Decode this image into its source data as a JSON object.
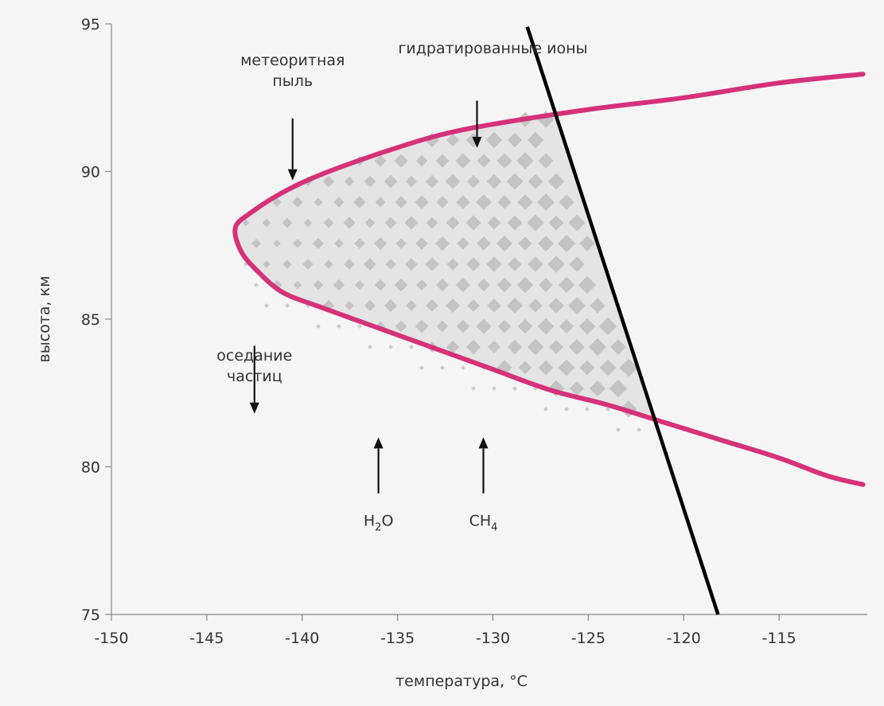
{
  "chart_data": {
    "type": "line",
    "title": "",
    "xlabel": "температура, °C",
    "ylabel": "высота, км",
    "xlim": [
      -150,
      -110.5
    ],
    "ylim": [
      75,
      95
    ],
    "xticks": [
      -150,
      -145,
      -140,
      -135,
      -130,
      -125,
      -120,
      -115
    ],
    "yticks": [
      75,
      80,
      85,
      90,
      95
    ],
    "grid": false,
    "legend": "none",
    "series": [
      {
        "color": "#d6317a",
        "kind": "boundary",
        "points": [
          [
            -110.6,
            93.3
          ],
          [
            -115,
            93.0
          ],
          [
            -120,
            92.5
          ],
          [
            -125,
            92.1
          ],
          [
            -130,
            91.6
          ],
          [
            -133,
            91.2
          ],
          [
            -136,
            90.6
          ],
          [
            -139,
            89.9
          ],
          [
            -141,
            89.3
          ],
          [
            -142.7,
            88.6
          ],
          [
            -143.5,
            88.1
          ],
          [
            -143.2,
            87.3
          ],
          [
            -142.3,
            86.6
          ],
          [
            -141,
            85.9
          ],
          [
            -139,
            85.4
          ],
          [
            -136,
            84.7
          ],
          [
            -133,
            84.0
          ],
          [
            -130,
            83.3
          ],
          [
            -127,
            82.6
          ],
          [
            -124,
            82.1
          ],
          [
            -121,
            81.5
          ],
          [
            -118,
            80.9
          ],
          [
            -115,
            80.3
          ],
          [
            -112.5,
            79.7
          ],
          [
            -110.6,
            79.4
          ]
        ]
      },
      {
        "color": "#000000",
        "kind": "temperature-line",
        "points": [
          [
            -128.2,
            94.9
          ],
          [
            -118.2,
            75.0
          ]
        ]
      }
    ],
    "annotations": [
      {
        "lines": [
          "метеоритная",
          "пыль"
        ],
        "x": -140.5,
        "y": 93.6,
        "arrow": "down",
        "arrow_from": 91.8,
        "arrow_to": 89.7
      },
      {
        "lines": [
          "гидратированные ионы"
        ],
        "x": -130.0,
        "y": 94.0,
        "arrow": "down",
        "arrow_from": 92.4,
        "arrow_to": 90.8
      },
      {
        "lines": [
          "оседание",
          "частиц"
        ],
        "x": -142.5,
        "y": 83.6,
        "arrow": "down",
        "arrow_from": 84.1,
        "arrow_to": 81.8
      },
      {
        "formula": {
          "base": "H",
          "sub": "2",
          "rest": "O"
        },
        "x": -136.0,
        "y": 78.0,
        "arrow": "up",
        "arrow_from": 79.1,
        "arrow_to": 81.0
      },
      {
        "formula": {
          "base": "CH",
          "sub": "4",
          "rest": ""
        },
        "x": -130.5,
        "y": 78.0,
        "arrow": "up",
        "arrow_from": 79.1,
        "arrow_to": 81.0
      }
    ]
  }
}
